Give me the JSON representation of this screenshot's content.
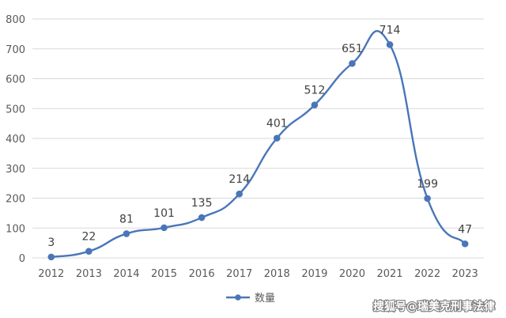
{
  "chart_data": {
    "type": "line",
    "title": "",
    "xlabel": "",
    "ylabel": "",
    "x": [
      "2012",
      "2013",
      "2014",
      "2015",
      "2016",
      "2017",
      "2018",
      "2019",
      "2020",
      "2021",
      "2022",
      "2023"
    ],
    "series": [
      {
        "name": "数量",
        "values": [
          3,
          22,
          81,
          101,
          135,
          214,
          401,
          512,
          651,
          714,
          199,
          47
        ]
      }
    ],
    "ylim": [
      0,
      800
    ],
    "yticks": [
      0,
      100,
      200,
      300,
      400,
      500,
      600,
      700,
      800
    ],
    "grid": true,
    "legend_position": "bottom",
    "line_style": "smoothed",
    "marker": "circle",
    "colors": {
      "series": "#4a76b8",
      "grid": "#d9d9d9",
      "text": "#595959"
    }
  },
  "watermark": {
    "text": "搜狐号@瑞美克刑事法律"
  }
}
